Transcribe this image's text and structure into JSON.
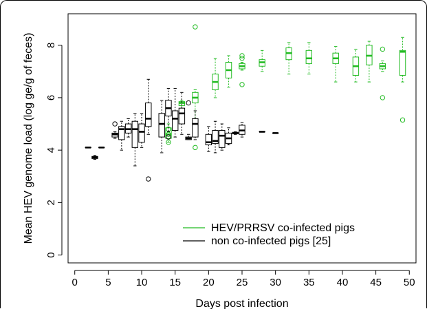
{
  "chart_data": {
    "type": "box",
    "title": "",
    "xlabel": "Days post infection",
    "ylabel": "Mean HEV genome load (log ge/g of feces)",
    "xlim": [
      -1,
      51
    ],
    "ylim": [
      -0.3,
      9.2
    ],
    "xticks": [
      "0",
      "5",
      "10",
      "15",
      "20",
      "25",
      "30",
      "35",
      "40",
      "45",
      "50"
    ],
    "yticks": [
      "0",
      "2",
      "4",
      "6",
      "8"
    ],
    "legend_position": "bottom-right",
    "series": [
      {
        "name": "HEV/PRRSV co-infected pigs",
        "color": "#22bb22",
        "boxes": [
          {
            "x": 14,
            "min": 4.3,
            "q1": 4.45,
            "median": 4.6,
            "q3": 4.85,
            "max": 5.0,
            "outliers": [
              4.3,
              4.6,
              4.8
            ]
          },
          {
            "x": 16,
            "min": 5.6,
            "q1": 5.7,
            "median": 5.8,
            "q3": 5.85,
            "max": 5.9,
            "outliers": []
          },
          {
            "x": 18,
            "min": 4.8,
            "q1": 5.8,
            "median": 6.0,
            "q3": 6.2,
            "max": 6.3,
            "outliers": [
              8.7,
              4.1
            ]
          },
          {
            "x": 21,
            "min": 6.0,
            "q1": 6.3,
            "median": 6.6,
            "q3": 6.9,
            "max": 7.5,
            "outliers": []
          },
          {
            "x": 23,
            "min": 6.4,
            "q1": 6.75,
            "median": 7.05,
            "q3": 7.35,
            "max": 7.6,
            "outliers": []
          },
          {
            "x": 25,
            "min": 7.05,
            "q1": 7.1,
            "median": 7.2,
            "q3": 7.3,
            "max": 7.35,
            "outliers": [
              7.6,
              7.5,
              6.5
            ]
          },
          {
            "x": 28,
            "min": 7.0,
            "q1": 7.2,
            "median": 7.35,
            "q3": 7.45,
            "max": 7.8,
            "outliers": []
          },
          {
            "x": 32,
            "min": 6.9,
            "q1": 7.45,
            "median": 7.7,
            "q3": 7.9,
            "max": 8.1,
            "outliers": []
          },
          {
            "x": 35,
            "min": 6.9,
            "q1": 7.3,
            "median": 7.5,
            "q3": 7.8,
            "max": 8.1,
            "outliers": []
          },
          {
            "x": 39,
            "min": 6.6,
            "q1": 7.3,
            "median": 7.5,
            "q3": 7.7,
            "max": 7.95,
            "outliers": []
          },
          {
            "x": 42,
            "min": 6.6,
            "q1": 6.85,
            "median": 7.2,
            "q3": 7.55,
            "max": 7.85,
            "outliers": []
          },
          {
            "x": 44,
            "min": 6.6,
            "q1": 7.25,
            "median": 7.6,
            "q3": 8.0,
            "max": 8.15,
            "outliers": []
          },
          {
            "x": 46,
            "min": 7.0,
            "q1": 7.1,
            "median": 7.2,
            "q3": 7.3,
            "max": 7.4,
            "outliers": [
              7.85,
              6.0
            ]
          },
          {
            "x": 49,
            "min": 6.6,
            "q1": 6.85,
            "median": 7.75,
            "q3": 7.8,
            "max": 8.3,
            "outliers": [
              5.15
            ]
          }
        ]
      },
      {
        "name": "non co-infected pigs [25]",
        "color": "#000000",
        "boxes": [
          {
            "x": 2,
            "min": 4.1,
            "q1": 4.1,
            "median": 4.1,
            "q3": 4.1,
            "max": 4.1,
            "outliers": []
          },
          {
            "x": 3,
            "min": 3.65,
            "q1": 3.68,
            "median": 3.72,
            "q3": 3.76,
            "max": 3.8,
            "outliers": []
          },
          {
            "x": 4,
            "min": 4.1,
            "q1": 4.1,
            "median": 4.1,
            "q3": 4.1,
            "max": 4.1,
            "outliers": []
          },
          {
            "x": 6,
            "min": 4.45,
            "q1": 4.5,
            "median": 4.6,
            "q3": 4.65,
            "max": 4.7,
            "outliers": [
              5.0
            ]
          },
          {
            "x": 7,
            "min": 4.0,
            "q1": 4.4,
            "median": 4.8,
            "q3": 4.9,
            "max": 5.1,
            "outliers": []
          },
          {
            "x": 8,
            "min": 4.5,
            "q1": 4.65,
            "median": 4.8,
            "q3": 5.0,
            "max": 5.2,
            "outliers": []
          },
          {
            "x": 9,
            "min": 3.4,
            "q1": 4.1,
            "median": 4.8,
            "q3": 5.1,
            "max": 5.4,
            "outliers": []
          },
          {
            "x": 10,
            "min": 4.1,
            "q1": 4.3,
            "median": 4.7,
            "q3": 5.0,
            "max": 5.4,
            "outliers": []
          },
          {
            "x": 11,
            "min": 4.6,
            "q1": 4.9,
            "median": 5.2,
            "q3": 5.8,
            "max": 6.7,
            "outliers": [
              2.9
            ]
          },
          {
            "x": 13,
            "min": 3.9,
            "q1": 4.5,
            "median": 5.0,
            "q3": 5.4,
            "max": 5.9,
            "outliers": []
          },
          {
            "x": 14,
            "min": 4.7,
            "q1": 5.3,
            "median": 5.6,
            "q3": 5.9,
            "max": 6.35,
            "outliers": [
              4.5
            ]
          },
          {
            "x": 15,
            "min": 4.5,
            "q1": 4.75,
            "median": 5.2,
            "q3": 5.5,
            "max": 6.35,
            "outliers": []
          },
          {
            "x": 16,
            "min": 4.6,
            "q1": 5.0,
            "median": 5.4,
            "q3": 5.6,
            "max": 6.2,
            "outliers": []
          },
          {
            "x": 17,
            "min": 4.4,
            "q1": 4.4,
            "median": 4.45,
            "q3": 4.5,
            "max": 4.6,
            "outliers": [
              5.8
            ]
          },
          {
            "x": 18,
            "min": 4.4,
            "q1": 4.5,
            "median": 5.0,
            "q3": 5.2,
            "max": 5.5,
            "outliers": []
          },
          {
            "x": 20,
            "min": 3.95,
            "q1": 4.2,
            "median": 4.3,
            "q3": 4.6,
            "max": 4.9,
            "outliers": []
          },
          {
            "x": 21,
            "min": 3.9,
            "q1": 4.25,
            "median": 4.35,
            "q3": 4.75,
            "max": 5.1,
            "outliers": []
          },
          {
            "x": 22,
            "min": 4.0,
            "q1": 4.1,
            "median": 4.55,
            "q3": 4.75,
            "max": 5.0,
            "outliers": []
          },
          {
            "x": 23,
            "min": 4.2,
            "q1": 4.25,
            "median": 4.45,
            "q3": 4.65,
            "max": 4.85,
            "outliers": []
          },
          {
            "x": 24,
            "min": 4.6,
            "q1": 4.62,
            "median": 4.65,
            "q3": 4.68,
            "max": 4.7,
            "outliers": []
          },
          {
            "x": 25,
            "min": 4.5,
            "q1": 4.6,
            "median": 4.75,
            "q3": 4.95,
            "max": 5.05,
            "outliers": []
          },
          {
            "x": 28,
            "min": 4.7,
            "q1": 4.7,
            "median": 4.7,
            "q3": 4.7,
            "max": 4.7,
            "outliers": []
          },
          {
            "x": 30,
            "min": 4.65,
            "q1": 4.65,
            "median": 4.65,
            "q3": 4.65,
            "max": 4.65,
            "outliers": []
          }
        ]
      }
    ]
  }
}
